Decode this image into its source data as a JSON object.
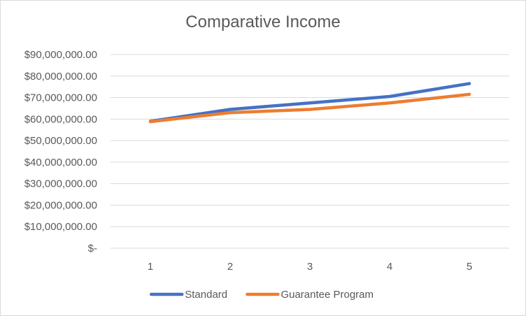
{
  "chart_data": {
    "type": "line",
    "title": "Comparative Income",
    "xlabel": "",
    "ylabel": "",
    "categories": [
      "1",
      "2",
      "3",
      "4",
      "5"
    ],
    "ylim": [
      0,
      90000000
    ],
    "y_ticks": [
      {
        "value": 0,
        "label": "$-"
      },
      {
        "value": 10000000,
        "label": "$10,000,000.00"
      },
      {
        "value": 20000000,
        "label": "$20,000,000.00"
      },
      {
        "value": 30000000,
        "label": "$30,000,000.00"
      },
      {
        "value": 40000000,
        "label": "$40,000,000.00"
      },
      {
        "value": 50000000,
        "label": "$50,000,000.00"
      },
      {
        "value": 60000000,
        "label": "$60,000,000.00"
      },
      {
        "value": 70000000,
        "label": "$70,000,000.00"
      },
      {
        "value": 80000000,
        "label": "$80,000,000.00"
      },
      {
        "value": 90000000,
        "label": "$90,000,000.00"
      }
    ],
    "grid": true,
    "legend_position": "bottom",
    "series": [
      {
        "name": "Standard",
        "color": "#4472c4",
        "values": [
          59000000,
          64500000,
          67500000,
          70500000,
          76500000
        ]
      },
      {
        "name": "Guarantee Program",
        "color": "#ed7d31",
        "values": [
          58800000,
          63000000,
          64500000,
          67500000,
          71500000
        ]
      }
    ]
  }
}
